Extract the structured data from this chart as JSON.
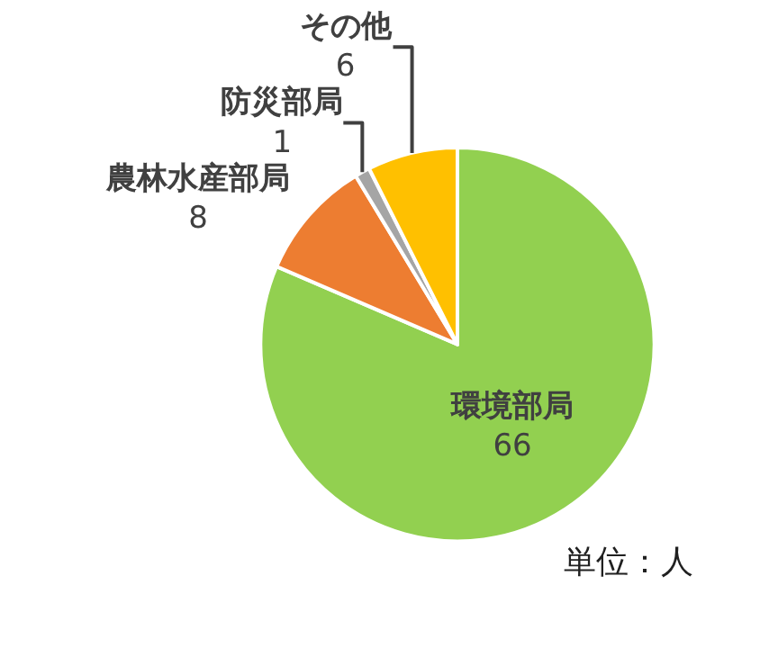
{
  "chart_data": {
    "type": "pie",
    "categories": [
      "環境部局",
      "農林水産部局",
      "防災部局",
      "その他"
    ],
    "values": [
      66,
      8,
      1,
      6
    ],
    "colors": [
      "#92d050",
      "#ed7d31",
      "#a5a5a5",
      "#ffc000"
    ],
    "data_labels": true,
    "legend": false,
    "annotations": [
      "単位：人"
    ]
  }
}
